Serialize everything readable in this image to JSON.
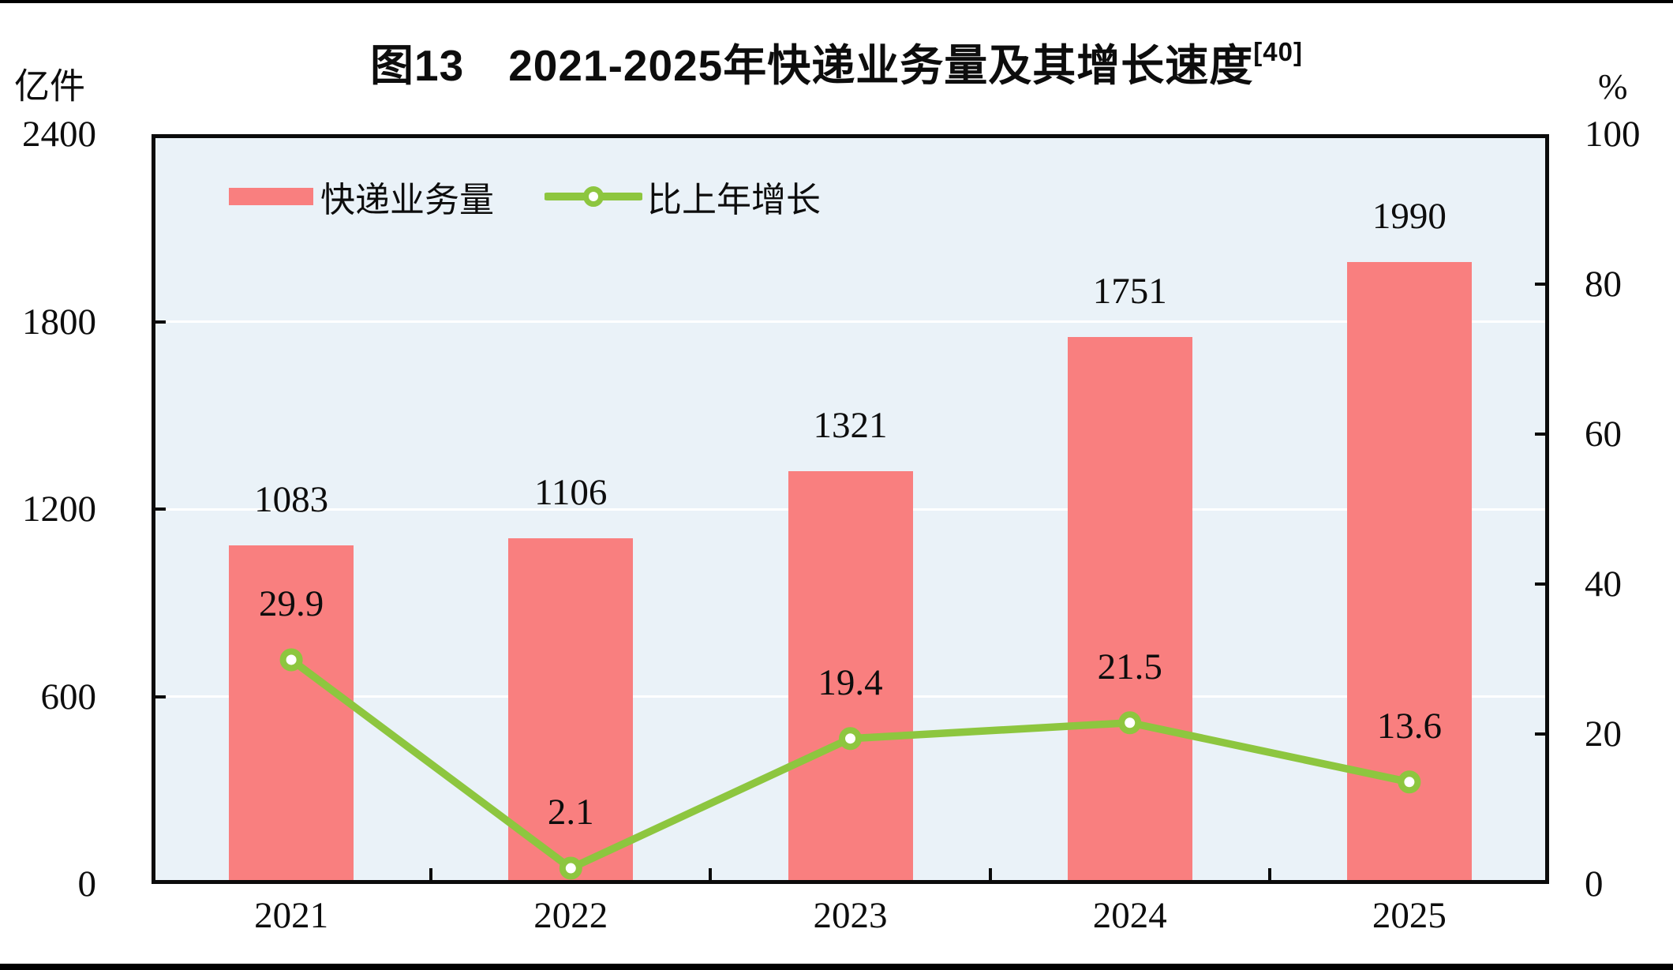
{
  "page": {
    "background": "#ffffff"
  },
  "title": {
    "text": "图13　2021-2025年快递业务量及其增长速度",
    "superscript": "[40]"
  },
  "chart_data": {
    "type": "bar+line",
    "categories": [
      "2021",
      "2022",
      "2023",
      "2024",
      "2025"
    ],
    "series": [
      {
        "name": "快递业务量",
        "type": "bar",
        "axis": "left",
        "unit": "亿件",
        "values": [
          1083,
          1106,
          1321,
          1751,
          1990
        ],
        "data_labels": [
          "1083",
          "1106",
          "1321",
          "1751",
          "1990"
        ],
        "color": "#F97F7F"
      },
      {
        "name": "比上年增长",
        "type": "line",
        "axis": "right",
        "unit": "%",
        "values": [
          29.9,
          2.1,
          19.4,
          21.5,
          13.6
        ],
        "data_labels": [
          "29.9",
          "2.1",
          "19.4",
          "21.5",
          "13.6"
        ],
        "color": "#8DC63F",
        "marker": {
          "shape": "circle",
          "fill": "#FFFFFF",
          "stroke": "#8DC63F"
        }
      }
    ],
    "left_axis": {
      "label": "亿件",
      "min": 0,
      "max": 2400,
      "ticks": [
        0,
        600,
        1200,
        1800,
        2400
      ],
      "tick_labels": [
        "0",
        "600",
        "1200",
        "1800",
        "2400"
      ]
    },
    "right_axis": {
      "label": "%",
      "min": 0,
      "max": 100,
      "ticks": [
        0,
        20,
        40,
        60,
        80,
        100
      ],
      "tick_labels": [
        "0",
        "20",
        "40",
        "60",
        "80",
        "100"
      ]
    },
    "grid": "horizontal white lines at left-axis ticks",
    "legend_position": "top-left inside plot",
    "plot_background": "#EAF2F8",
    "colors": {
      "bar": "#F97F7F",
      "line": "#8DC63F",
      "grid": "#FFFFFF",
      "axis": "#0B0B0B",
      "plot_bg": "#EAF2F8"
    }
  }
}
